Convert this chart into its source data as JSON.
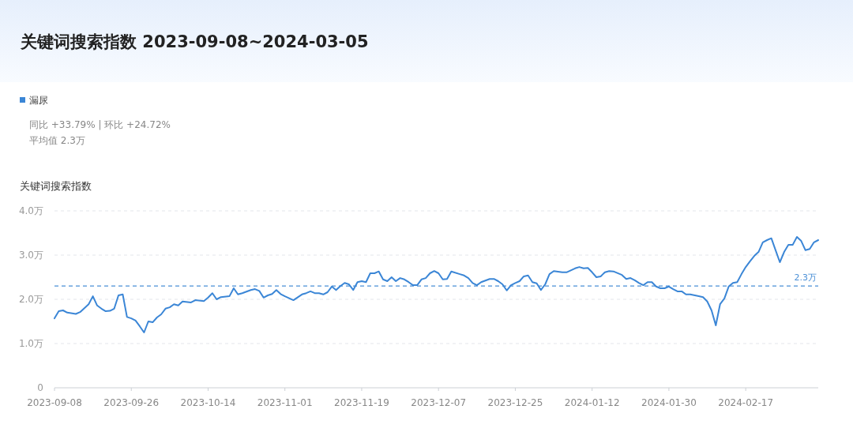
{
  "chart_data": {
    "type": "line",
    "title": "关键词搜索指数 2023-09-08~2024-03-05",
    "ylabel": "关键词搜索指数",
    "annotations": [
      "同比 +33.79% | 环比 +24.72%",
      "平均值 2.3万"
    ],
    "legend": "top left",
    "marker": "none",
    "line_style": "solid",
    "grid": "y",
    "xlim": [
      "2023-09-08",
      "2024-03-05"
    ],
    "xticks": [
      "2023-09-08",
      "2023-09-26",
      "2023-10-14",
      "2023-11-01",
      "2023-11-19",
      "2023-12-07",
      "2023-12-25",
      "2024-01-12",
      "2024-01-30",
      "2024-02-17"
    ],
    "ylim": [
      0,
      4
    ],
    "yticks": [
      0,
      {
        "value": 1,
        "label": "1.0万"
      },
      {
        "value": 2,
        "label": "2.0万"
      },
      {
        "value": 3,
        "label": "3.0万"
      },
      {
        "value": 4,
        "label": "4.0万"
      }
    ],
    "ref_lines": [
      {
        "axis": "y",
        "value": 2.3,
        "label": "2.3万",
        "color": "#4a8fd6",
        "line_style": "dashed"
      }
    ],
    "x": [
      "2023-09-08",
      "2023-09-09",
      "2023-09-10",
      "2023-09-11",
      "2023-09-13",
      "2023-09-14",
      "2023-09-16",
      "2023-09-17",
      "2023-09-18",
      "2023-09-19",
      "2023-09-20",
      "2023-09-21",
      "2023-09-22",
      "2023-09-23",
      "2023-09-24",
      "2023-09-25",
      "2023-09-26",
      "2023-09-27",
      "2023-09-28",
      "2023-09-29",
      "2023-09-30",
      "2023-10-01",
      "2023-10-02",
      "2023-10-03",
      "2023-10-04",
      "2023-10-05",
      "2023-10-06",
      "2023-10-07",
      "2023-10-08",
      "2023-10-10",
      "2023-10-11",
      "2023-10-13",
      "2023-10-14",
      "2023-10-15",
      "2023-10-16",
      "2023-10-17",
      "2023-10-19",
      "2023-10-20",
      "2023-10-21",
      "2023-10-22",
      "2023-10-24",
      "2023-10-25",
      "2023-10-26",
      "2023-10-27",
      "2023-10-28",
      "2023-10-29",
      "2023-10-30",
      "2023-10-31",
      "2023-11-01",
      "2023-11-03",
      "2023-11-05",
      "2023-11-06",
      "2023-11-07",
      "2023-11-08",
      "2023-11-09",
      "2023-11-10",
      "2023-11-11",
      "2023-11-12",
      "2023-11-13",
      "2023-11-14",
      "2023-11-15",
      "2023-11-16",
      "2023-11-17",
      "2023-11-18",
      "2023-11-19",
      "2023-11-20",
      "2023-11-21",
      "2023-11-22",
      "2023-11-23",
      "2023-11-24",
      "2023-11-25",
      "2023-11-26",
      "2023-11-27",
      "2023-11-28",
      "2023-11-29",
      "2023-11-30",
      "2023-12-01",
      "2023-12-02",
      "2023-12-03",
      "2023-12-04",
      "2023-12-05",
      "2023-12-06",
      "2023-12-07",
      "2023-12-08",
      "2023-12-09",
      "2023-12-10",
      "2023-12-12",
      "2023-12-13",
      "2023-12-14",
      "2023-12-15",
      "2023-12-16",
      "2023-12-17",
      "2023-12-19",
      "2023-12-20",
      "2023-12-21",
      "2023-12-22",
      "2023-12-23",
      "2023-12-24",
      "2023-12-25",
      "2023-12-26",
      "2023-12-27",
      "2023-12-28",
      "2023-12-29",
      "2023-12-30",
      "2023-12-31",
      "2024-01-01",
      "2024-01-02",
      "2024-01-03",
      "2024-01-05",
      "2024-01-06",
      "2024-01-08",
      "2024-01-09",
      "2024-01-10",
      "2024-01-11",
      "2024-01-12",
      "2024-01-13",
      "2024-01-14",
      "2024-01-15",
      "2024-01-16",
      "2024-01-17",
      "2024-01-19",
      "2024-01-20",
      "2024-01-21",
      "2024-01-22",
      "2024-01-23",
      "2024-01-24",
      "2024-01-25",
      "2024-01-26",
      "2024-01-27",
      "2024-01-28",
      "2024-01-29",
      "2024-01-30",
      "2024-01-31",
      "2024-02-01",
      "2024-02-02",
      "2024-02-03",
      "2024-02-04",
      "2024-02-06",
      "2024-02-07",
      "2024-02-08",
      "2024-02-09",
      "2024-02-10",
      "2024-02-11",
      "2024-02-12",
      "2024-02-13",
      "2024-02-14",
      "2024-02-15",
      "2024-02-16",
      "2024-02-17",
      "2024-02-18",
      "2024-02-19",
      "2024-02-20",
      "2024-02-21",
      "2024-02-22",
      "2024-02-23",
      "2024-02-24",
      "2024-02-25",
      "2024-02-26",
      "2024-02-27",
      "2024-02-28",
      "2024-02-29",
      "2024-03-01",
      "2024-03-02",
      "2024-03-03",
      "2024-03-04",
      "2024-03-05"
    ],
    "series": [
      {
        "name": "漏尿",
        "color": "#3b86d6",
        "values": [
          1.57,
          1.73,
          1.75,
          1.7,
          1.67,
          1.71,
          1.89,
          2.07,
          1.86,
          1.79,
          1.73,
          1.74,
          1.79,
          2.09,
          2.11,
          1.6,
          1.57,
          1.52,
          1.39,
          1.25,
          1.5,
          1.48,
          1.59,
          1.66,
          1.79,
          1.82,
          1.89,
          1.86,
          1.95,
          1.93,
          1.98,
          1.96,
          2.04,
          2.14,
          2.0,
          2.05,
          2.07,
          2.25,
          2.11,
          2.14,
          2.21,
          2.23,
          2.19,
          2.04,
          2.09,
          2.12,
          2.21,
          2.12,
          2.07,
          1.98,
          2.11,
          2.14,
          2.18,
          2.14,
          2.14,
          2.11,
          2.16,
          2.29,
          2.21,
          2.3,
          2.37,
          2.34,
          2.21,
          2.39,
          2.41,
          2.39,
          2.59,
          2.59,
          2.63,
          2.45,
          2.41,
          2.5,
          2.41,
          2.48,
          2.45,
          2.39,
          2.32,
          2.32,
          2.45,
          2.48,
          2.59,
          2.64,
          2.59,
          2.45,
          2.46,
          2.63,
          2.57,
          2.54,
          2.48,
          2.37,
          2.32,
          2.39,
          2.46,
          2.46,
          2.41,
          2.34,
          2.2,
          2.32,
          2.37,
          2.41,
          2.52,
          2.54,
          2.39,
          2.36,
          2.21,
          2.34,
          2.57,
          2.64,
          2.61,
          2.61,
          2.7,
          2.73,
          2.7,
          2.71,
          2.61,
          2.5,
          2.52,
          2.61,
          2.64,
          2.63,
          2.55,
          2.46,
          2.48,
          2.43,
          2.37,
          2.32,
          2.39,
          2.39,
          2.29,
          2.25,
          2.25,
          2.29,
          2.23,
          2.18,
          2.18,
          2.11,
          2.11,
          2.07,
          2.05,
          1.95,
          1.75,
          1.41,
          1.89,
          2.02,
          2.29,
          2.37,
          2.39,
          2.57,
          2.73,
          2.86,
          2.98,
          3.07,
          3.29,
          3.34,
          3.38,
          3.11,
          2.84,
          3.07,
          3.23,
          3.23,
          3.41,
          3.32,
          3.11,
          3.14,
          3.29,
          3.34
        ]
      }
    ]
  }
}
